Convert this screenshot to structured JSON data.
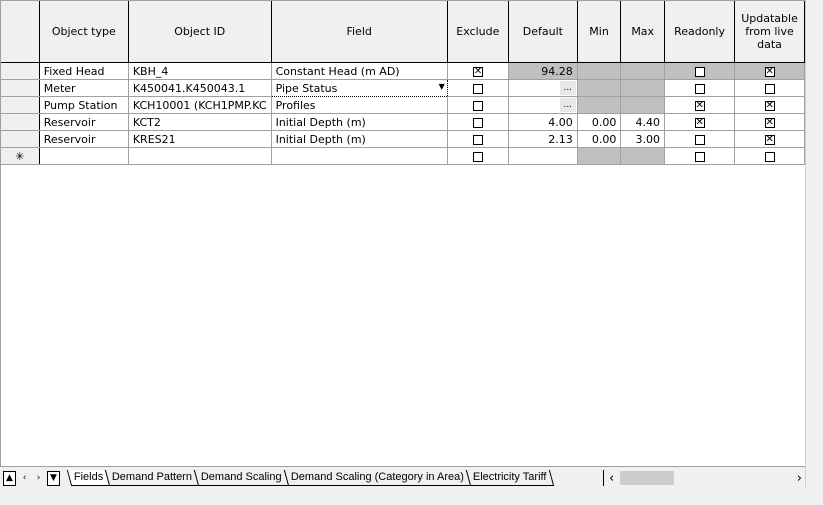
{
  "columns": [
    "",
    "Object type",
    "Object ID",
    "Field",
    "Exclude",
    "Default",
    "Min",
    "Max",
    "Readonly",
    "Updatable from live data"
  ],
  "rows": [
    {
      "type": "Fixed Head",
      "id": "KBH_4",
      "field": "Constant Head (m AD)",
      "exclude": true,
      "default": "94.28",
      "min": "",
      "max": "",
      "readonly": false,
      "updatable": true
    },
    {
      "type": "Meter",
      "id": "K450041.K450043.1",
      "field": "Pipe Status",
      "exclude": false,
      "default": "...",
      "min": "",
      "max": "",
      "readonly": false,
      "updatable": false
    },
    {
      "type": "Pump Station",
      "id": "KCH10001 (KCH1PMP.KC",
      "field": "Profiles",
      "exclude": false,
      "default": "...",
      "min": "",
      "max": "",
      "readonly": true,
      "updatable": true
    },
    {
      "type": "Reservoir",
      "id": "KCT2",
      "field": "Initial Depth (m)",
      "exclude": false,
      "default": "4.00",
      "min": "0.00",
      "max": "4.40",
      "readonly": true,
      "updatable": true
    },
    {
      "type": "Reservoir",
      "id": "KRES21",
      "field": "Initial Depth (m)",
      "exclude": false,
      "default": "2.13",
      "min": "0.00",
      "max": "3.00",
      "readonly": false,
      "updatable": true
    }
  ],
  "new_row_marker": "✳",
  "tabs": [
    "Fields",
    "Demand Pattern",
    "Demand Scaling",
    "Demand Scaling (Category in Area)",
    "Electricity Tariff"
  ],
  "active_tab": "Fields",
  "nav": {
    "first": "▲",
    "prev": "‹",
    "next": "›",
    "last": "▼"
  },
  "hscroll": {
    "left": "‹",
    "right": "›"
  }
}
